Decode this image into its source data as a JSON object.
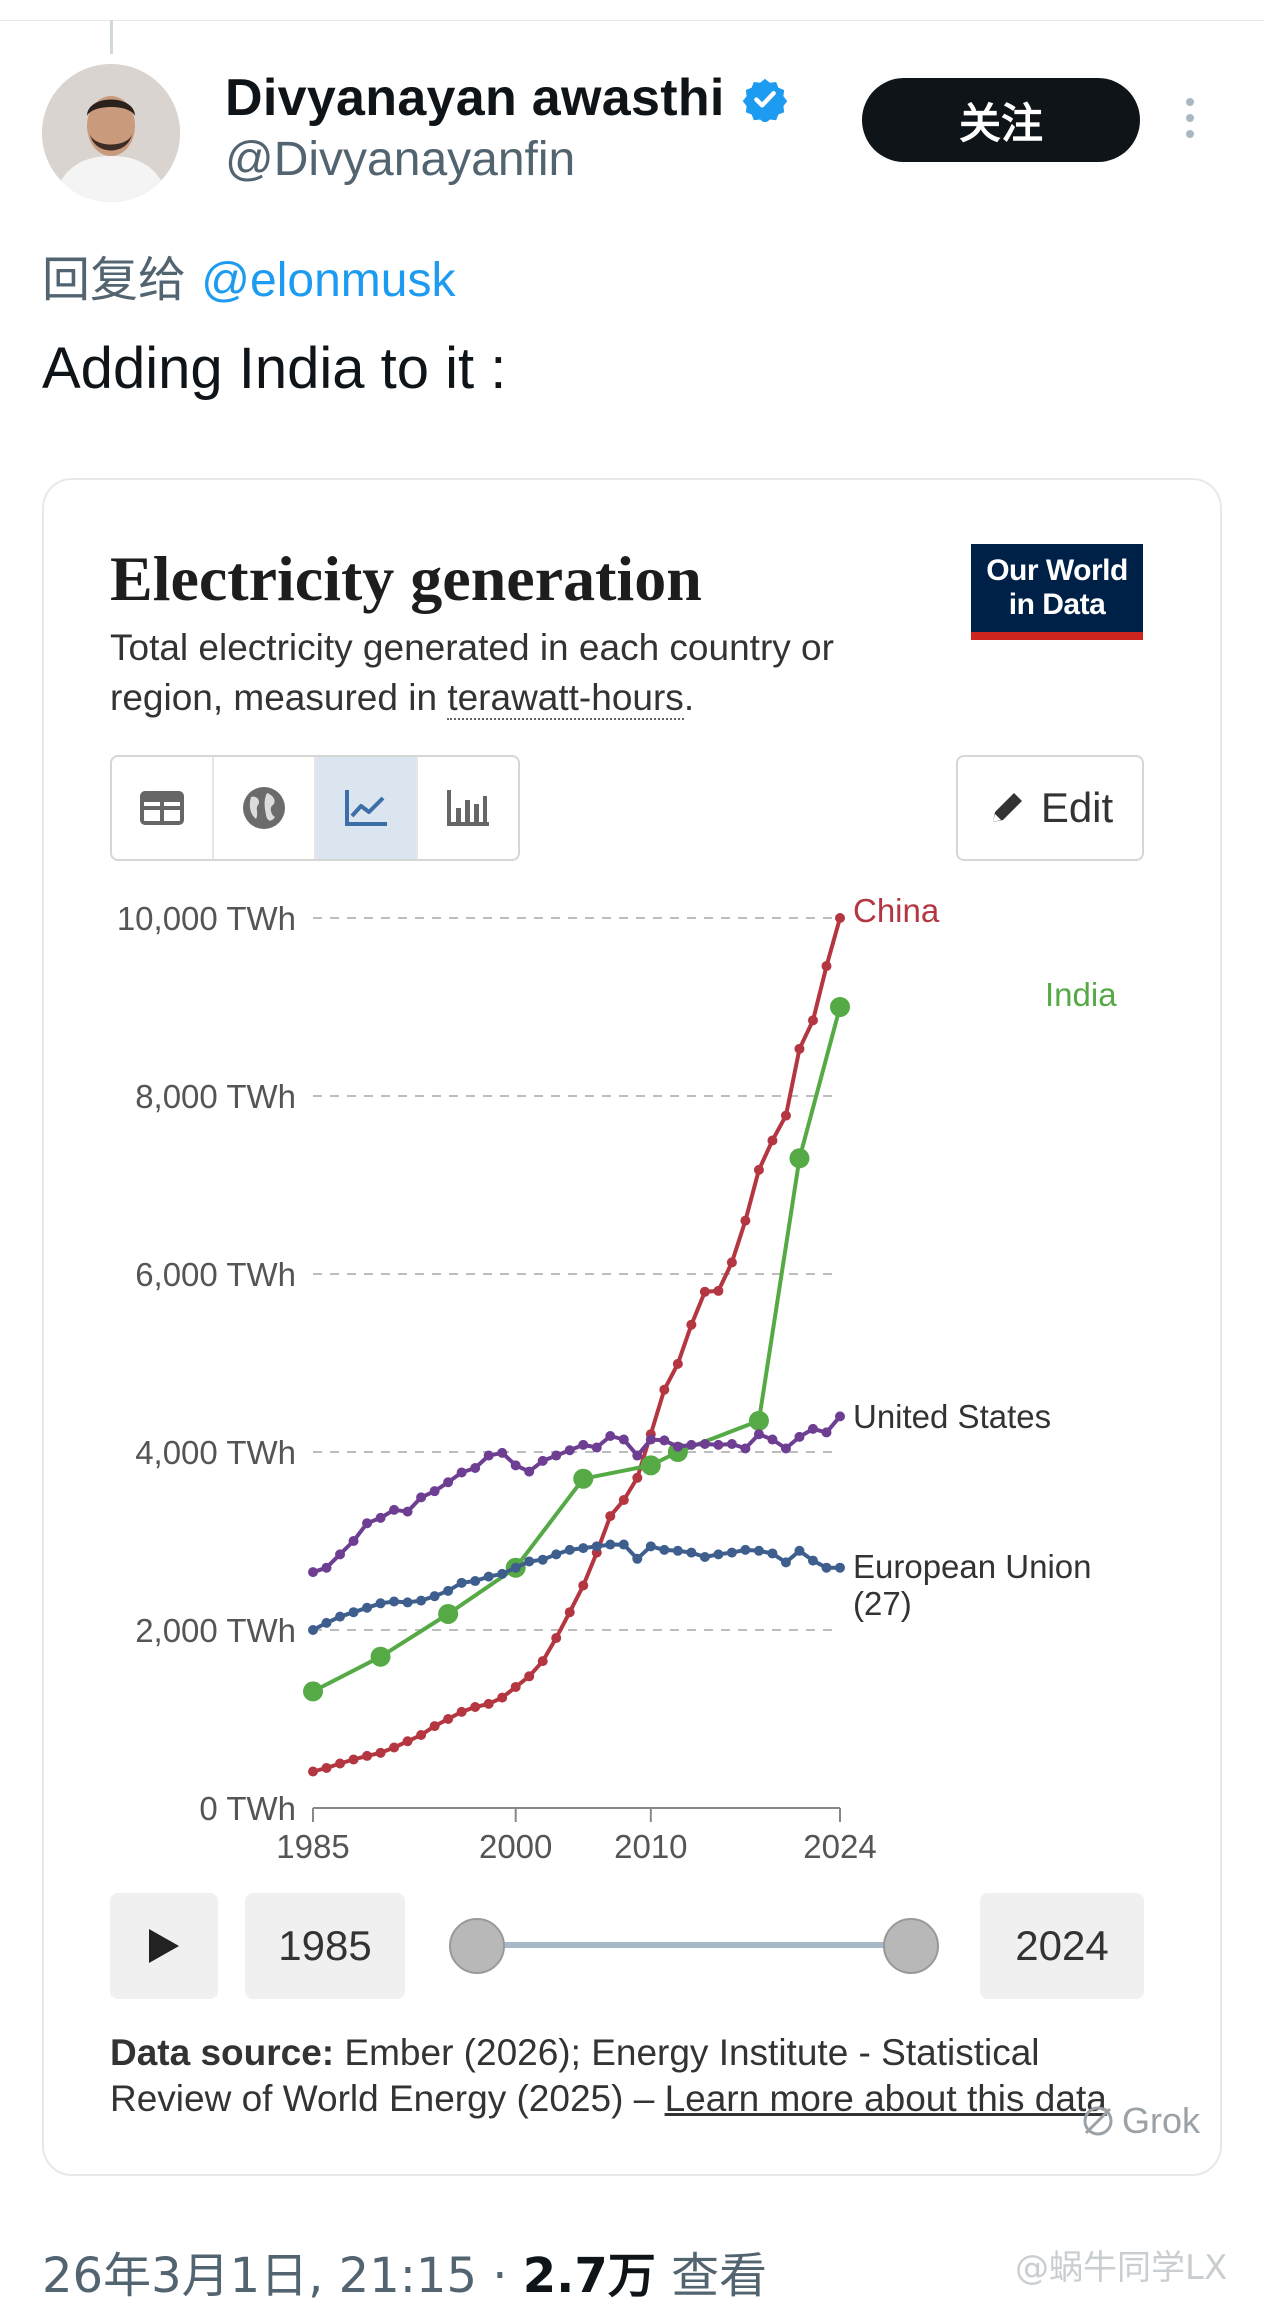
{
  "tweet": {
    "display_name": "Divyanayan awasthi",
    "handle": "@Divyanayanfin",
    "follow_label": "关注",
    "reply_prefix": "回复给",
    "reply_mention": "@elonmusk",
    "text": "Adding India to it :",
    "timestamp": "26年3月1日, 21:15 · ",
    "views_count": "2.7万",
    "views_label": " 查看",
    "watermark": "@蜗牛同学LX"
  },
  "card": {
    "title": "Electricity generation",
    "subtitle_1": "Total electricity generated in each country or region, measured in ",
    "subtitle_link": "terawatt-hours",
    "subtitle_end": ".",
    "logo_line1": "Our World",
    "logo_line2": "in Data",
    "edit_label": "Edit",
    "tabs": [
      "table-icon",
      "globe-icon",
      "line-chart-icon",
      "bar-chart-icon"
    ],
    "timeline_start": "1985",
    "timeline_end": "2024",
    "source_label": "Data source:",
    "source_text": " Ember (2026); Energy Institute - Statistical Review of World Energy (2025) – ",
    "source_link": "Learn more about this data",
    "grok_label": "Grok"
  },
  "chart_data": {
    "type": "line",
    "title": "Electricity generation",
    "subtitle": "Total electricity generated in each country or region, measured in terawatt-hours.",
    "unit": "TWh",
    "ylim": [
      0,
      10000
    ],
    "xlim": [
      1985,
      2024
    ],
    "y_ticks": [
      0,
      2000,
      4000,
      6000,
      8000,
      10000
    ],
    "y_tick_labels": [
      "0 TWh",
      "2,000 TWh",
      "4,000 TWh",
      "6,000 TWh",
      "8,000 TWh",
      "10,000 TWh"
    ],
    "x_ticks": [
      1985,
      2000,
      2010,
      2024
    ],
    "x_tick_labels": [
      "1985",
      "2000",
      "2010",
      "2024"
    ],
    "series": [
      {
        "name": "China",
        "label": "China",
        "color": "#b33640",
        "x": [
          1985,
          1986,
          1987,
          1988,
          1989,
          1990,
          1991,
          1992,
          1993,
          1994,
          1995,
          1996,
          1997,
          1998,
          1999,
          2000,
          2001,
          2002,
          2003,
          2004,
          2005,
          2006,
          2007,
          2008,
          2009,
          2010,
          2011,
          2012,
          2013,
          2014,
          2015,
          2016,
          2017,
          2018,
          2019,
          2020,
          2021,
          2022,
          2023,
          2024
        ],
        "y": [
          410,
          450,
          500,
          545,
          585,
          620,
          680,
          750,
          820,
          920,
          1000,
          1080,
          1135,
          1170,
          1240,
          1360,
          1480,
          1650,
          1910,
          2200,
          2500,
          2870,
          3280,
          3460,
          3710,
          4200,
          4700,
          4990,
          5430,
          5800,
          5810,
          6130,
          6600,
          7170,
          7500,
          7780,
          8530,
          8850,
          9460,
          10000
        ]
      },
      {
        "name": "India",
        "label": "India",
        "color": "#56aa46",
        "x": [
          1985,
          1990,
          1995,
          2000,
          2005,
          2010,
          2012,
          2018,
          2024
        ],
        "y": [
          1310,
          1700,
          2180,
          2700,
          3700,
          3850,
          4000,
          4350,
          9000
        ],
        "markers": [
          1985,
          1990,
          1995,
          2000,
          2005,
          2010,
          2012,
          2018,
          2021,
          2024
        ],
        "extra": {
          "2021": 7300,
          "2024": 9000
        }
      },
      {
        "name": "United States",
        "label": "United States",
        "color": "#6d3e91",
        "x": [
          1985,
          1986,
          1987,
          1988,
          1989,
          1990,
          1991,
          1992,
          1993,
          1994,
          1995,
          1996,
          1997,
          1998,
          1999,
          2000,
          2001,
          2002,
          2003,
          2004,
          2005,
          2006,
          2007,
          2008,
          2009,
          2010,
          2011,
          2012,
          2013,
          2014,
          2015,
          2016,
          2017,
          2018,
          2019,
          2020,
          2021,
          2022,
          2023,
          2024
        ],
        "y": [
          2650,
          2700,
          2850,
          3000,
          3200,
          3260,
          3350,
          3330,
          3490,
          3560,
          3660,
          3770,
          3820,
          3960,
          3990,
          3850,
          3780,
          3900,
          3960,
          4020,
          4080,
          4050,
          4180,
          4140,
          3960,
          4140,
          4130,
          4060,
          4080,
          4090,
          4080,
          4090,
          4040,
          4200,
          4140,
          4040,
          4170,
          4260,
          4220,
          4400
        ]
      },
      {
        "name": "European Union (27)",
        "label": "European Union (27)",
        "color": "#3e5e8e",
        "x": [
          1985,
          1986,
          1987,
          1988,
          1989,
          1990,
          1991,
          1992,
          1993,
          1994,
          1995,
          1996,
          1997,
          1998,
          1999,
          2000,
          2001,
          2002,
          2003,
          2004,
          2005,
          2006,
          2007,
          2008,
          2009,
          2010,
          2011,
          2012,
          2013,
          2014,
          2015,
          2016,
          2017,
          2018,
          2019,
          2020,
          2021,
          2022,
          2023,
          2024
        ],
        "y": [
          2000,
          2080,
          2150,
          2200,
          2250,
          2300,
          2320,
          2310,
          2330,
          2380,
          2440,
          2530,
          2550,
          2600,
          2630,
          2700,
          2770,
          2790,
          2850,
          2900,
          2920,
          2940,
          2960,
          2960,
          2800,
          2940,
          2900,
          2890,
          2870,
          2820,
          2850,
          2870,
          2900,
          2890,
          2860,
          2760,
          2890,
          2780,
          2700,
          2700
        ]
      }
    ]
  }
}
